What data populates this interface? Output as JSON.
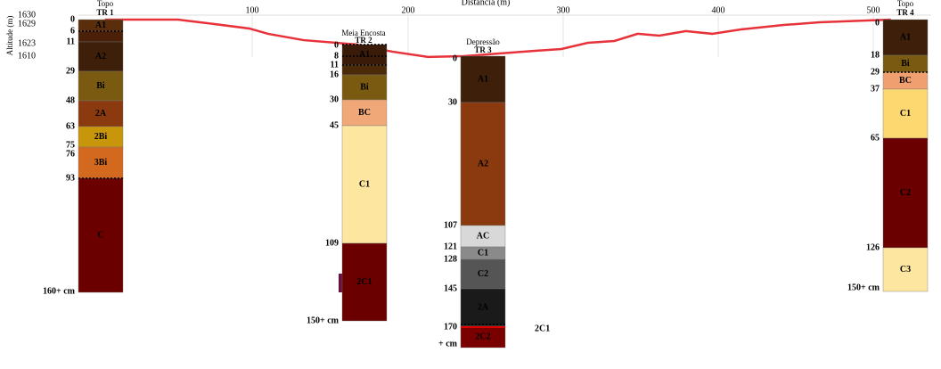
{
  "header": {
    "x_axis_title": "Distância (m)",
    "y_axis_title": "Altitude (m)"
  },
  "x_ticks": [
    "100",
    "200",
    "300",
    "400",
    "500"
  ],
  "y_labels": [
    "1630",
    "1629",
    "1623",
    "1610"
  ],
  "terrain": {
    "color": "#e8323a",
    "distance": [
      5,
      52,
      75,
      98,
      110,
      133,
      167,
      190,
      213,
      236,
      259,
      282,
      299,
      316,
      333,
      348,
      362,
      379,
      396,
      414,
      442,
      465,
      511
    ],
    "altitude": [
      1627.8,
      1627.8,
      1625.7,
      1623.5,
      1620.9,
      1617.8,
      1615.7,
      1612.2,
      1609.6,
      1610,
      1611.3,
      1612.6,
      1613.5,
      1616.5,
      1617.4,
      1620.9,
      1620,
      1622.2,
      1620.9,
      1623,
      1625.2,
      1626.5,
      1627.8
    ]
  },
  "profiles": [
    {
      "place": "Topo",
      "name": "TR 1",
      "depths": [
        "0",
        "6",
        "11",
        "29",
        "48",
        "63",
        "75",
        "76",
        "93"
      ],
      "bottom": "160+ cm",
      "horizons": [
        {
          "label": "A1",
          "color": "#5a2d0c"
        },
        {
          "color": "#4a2008"
        },
        {
          "label": "A2",
          "color": "#3d1f0a"
        },
        {
          "label": "Bi",
          "color": "#7a5a10"
        },
        {
          "label": "2A",
          "color": "#8b3a10"
        },
        {
          "label": "2Bi",
          "color": "#c8960a"
        },
        {
          "label": "3Bi",
          "color": "#d2691e"
        },
        {
          "label": "C",
          "color": "#6b0000"
        }
      ]
    },
    {
      "place": "Meia Encosta",
      "name": "TR 2",
      "depths": [
        "0",
        "8",
        "11",
        "16",
        "30",
        "45",
        "109"
      ],
      "bottom": "150+ cm",
      "horizons": [
        {
          "label": "A1",
          "color": "#3a1a08"
        },
        {
          "color": "#4a2a08"
        },
        {
          "label": "Bi",
          "color": "#7a5a10"
        },
        {
          "label": "BC",
          "color": "#f0a878"
        },
        {
          "label": "C1",
          "color": "#fde6a0"
        },
        {
          "label": "2C1",
          "color": "#6b0000"
        }
      ]
    },
    {
      "place": "Depressão",
      "name": "TR 3",
      "depths": [
        "0",
        "30",
        "107",
        "121",
        "128",
        "145",
        "170"
      ],
      "bottom": "+ cm",
      "horizons": [
        {
          "label": "A1",
          "color": "#3d1f0a"
        },
        {
          "label": "A2",
          "color": "#8b3a10"
        },
        {
          "label": "AC",
          "color": "#d8d8d8"
        },
        {
          "label": "C1",
          "color": "#8a8a8a"
        },
        {
          "label": "C2",
          "color": "#555555"
        },
        {
          "label": "2A",
          "color": "#1a1a1a"
        },
        {
          "label": "2C2",
          "color": "#7a0000"
        }
      ]
    },
    {
      "place": "Topo",
      "name": "TR 4",
      "depths": [
        "0",
        "18",
        "29",
        "37",
        "65",
        "126"
      ],
      "bottom": "150+ cm",
      "horizons": [
        {
          "label": "A1",
          "color": "#3d1f0a"
        },
        {
          "label": "Bi",
          "color": "#7a5a10"
        },
        {
          "label": "BC",
          "color": "#f0a070"
        },
        {
          "label": "C1",
          "color": "#fdd870"
        },
        {
          "label": "C2",
          "color": "#6b0000"
        },
        {
          "label": "C3",
          "color": "#fde6a0"
        }
      ]
    }
  ],
  "outside_label": "2C1"
}
